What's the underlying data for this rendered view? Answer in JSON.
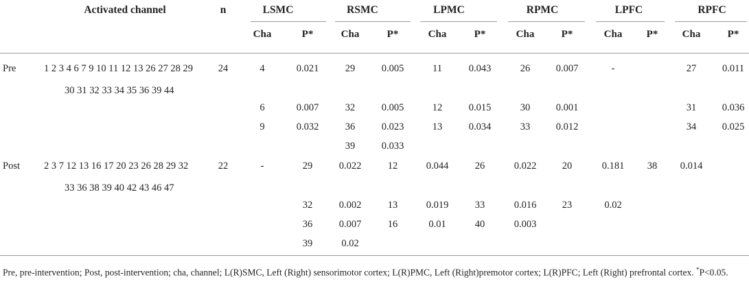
{
  "header": {
    "activated_channel": "Activated channel",
    "n": "n",
    "regions": [
      "LSMC",
      "RSMC",
      "LPMC",
      "RPMC",
      "LPFC",
      "RPFC"
    ],
    "cha": "Cha",
    "p": "P*"
  },
  "rows": {
    "pre": {
      "label": "Pre",
      "channels_line1": "1 2 3 4 6 7 9 10 11 12 13 26 27 28 29",
      "channels_line2": "30 31 32 33 34 35 36 39 44",
      "n": "24",
      "lines": [
        [
          "4",
          "0.021",
          "29",
          "0.005",
          "11",
          "0.043",
          "26",
          "0.007",
          "-",
          "",
          "27",
          "0.011"
        ],
        [
          "6",
          "0.007",
          "32",
          "0.005",
          "12",
          "0.015",
          "30",
          "0.001",
          "",
          "",
          "31",
          "0.036"
        ],
        [
          "9",
          "0.032",
          "36",
          "0.023",
          "13",
          "0.034",
          "33",
          "0.012",
          "",
          "",
          "34",
          "0.025"
        ],
        [
          "",
          "",
          "39",
          "0.033",
          "",
          "",
          "",
          "",
          "",
          "",
          "",
          ""
        ]
      ]
    },
    "post": {
      "label": "Post",
      "channels_line1": "2 3 7 12 13 16 17 20 23 26 28 29 32",
      "channels_line2": "33 36 38 39 40 42 43 46 47",
      "n": "22",
      "lines": [
        [
          "-",
          "29",
          "0.022",
          "12",
          "0.044",
          "26",
          "0.022",
          "20",
          "0.181",
          "38",
          "0.014",
          ""
        ],
        [
          "",
          "32",
          "0.002",
          "13",
          "0.019",
          "33",
          "0.016",
          "23",
          "0.02",
          "",
          "",
          ""
        ],
        [
          "",
          "36",
          "0.007",
          "16",
          "0.01",
          "40",
          "0.003",
          "",
          "",
          "",
          "",
          ""
        ],
        [
          "",
          "39",
          "0.02",
          "",
          "",
          "",
          "",
          "",
          "",
          "",
          "",
          ""
        ]
      ]
    }
  },
  "footnote": {
    "text": "Pre, pre-intervention; Post, post-intervention; cha, channel; L(R)SMC, Left (Right) sensorimotor cortex; L(R)PMC, Left (Right)premotor cortex; L(R)PFC; Left (Right) prefrontal cortex. ",
    "sup": "*",
    "tail": "P<0.05."
  }
}
